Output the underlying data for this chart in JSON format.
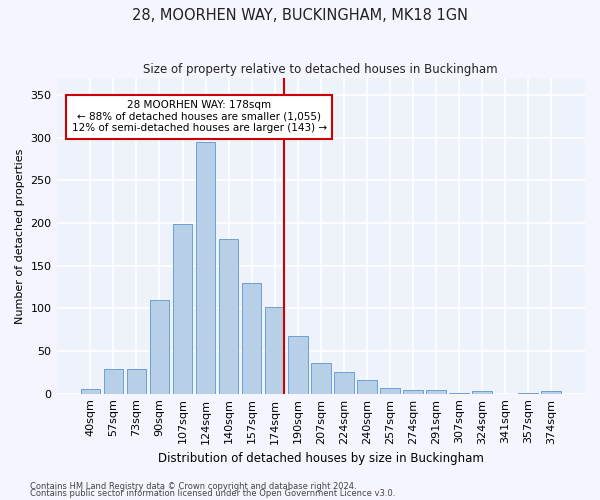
{
  "title": "28, MOORHEN WAY, BUCKINGHAM, MK18 1GN",
  "subtitle": "Size of property relative to detached houses in Buckingham",
  "xlabel": "Distribution of detached houses by size in Buckingham",
  "ylabel": "Number of detached properties",
  "categories": [
    "40sqm",
    "57sqm",
    "73sqm",
    "90sqm",
    "107sqm",
    "124sqm",
    "140sqm",
    "157sqm",
    "174sqm",
    "190sqm",
    "207sqm",
    "224sqm",
    "240sqm",
    "257sqm",
    "274sqm",
    "291sqm",
    "307sqm",
    "324sqm",
    "341sqm",
    "357sqm",
    "374sqm"
  ],
  "values": [
    6,
    29,
    29,
    110,
    199,
    295,
    181,
    130,
    102,
    68,
    36,
    26,
    16,
    7,
    4,
    4,
    1,
    3,
    0,
    1,
    3
  ],
  "bar_color": "#b8cfe8",
  "bar_edge_color": "#6a9fd8",
  "vline_color": "#cc0000",
  "annotation_text": "28 MOORHEN WAY: 178sqm\n← 88% of detached houses are smaller (1,055)\n12% of semi-detached houses are larger (143) →",
  "annotation_box_color": "#ffffff",
  "annotation_box_edge": "#cc0000",
  "background_color": "#eef2fa",
  "grid_color": "#ffffff",
  "fig_background": "#f5f5ff",
  "ylim": [
    0,
    370
  ],
  "yticks": [
    0,
    50,
    100,
    150,
    200,
    250,
    300,
    350
  ],
  "footer1": "Contains HM Land Registry data © Crown copyright and database right 2024.",
  "footer2": "Contains public sector information licensed under the Open Government Licence v3.0."
}
